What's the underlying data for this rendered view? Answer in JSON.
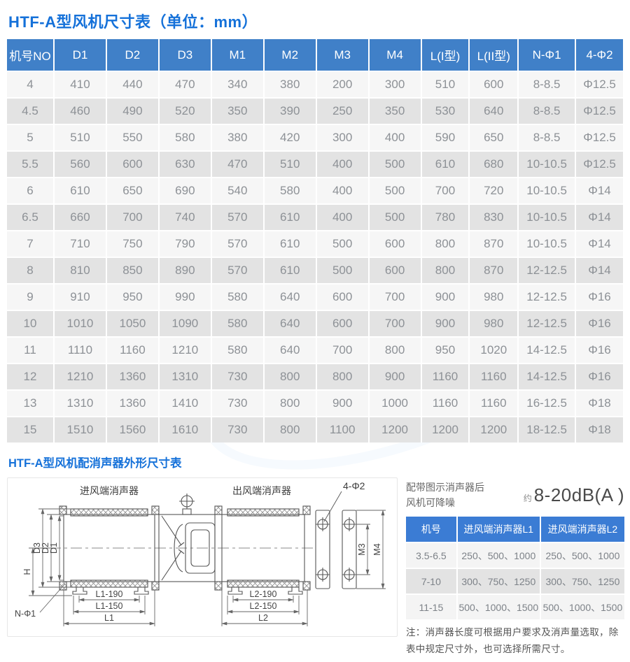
{
  "page": {
    "title1": "HTF-A型风机尺寸表（单位：mm）",
    "title2": "HTF-A型风机配消声器外形尺寸表"
  },
  "main_table": {
    "headers": [
      "机号NO",
      "D1",
      "D2",
      "D3",
      "M1",
      "M2",
      "M3",
      "M4",
      "L(I型)",
      "L(II型)",
      "N-Φ1",
      "4-Φ2"
    ],
    "rows": [
      [
        "4",
        "410",
        "440",
        "470",
        "340",
        "380",
        "200",
        "300",
        "510",
        "600",
        "8-8.5",
        "Φ12.5"
      ],
      [
        "4.5",
        "460",
        "490",
        "520",
        "350",
        "390",
        "250",
        "350",
        "530",
        "640",
        "8-8.5",
        "Φ12.5"
      ],
      [
        "5",
        "510",
        "550",
        "580",
        "380",
        "420",
        "300",
        "400",
        "590",
        "650",
        "8-8.5",
        "Φ12.5"
      ],
      [
        "5.5",
        "560",
        "600",
        "630",
        "470",
        "510",
        "400",
        "500",
        "610",
        "680",
        "10-10.5",
        "Φ12.5"
      ],
      [
        "6",
        "610",
        "650",
        "690",
        "540",
        "580",
        "400",
        "500",
        "700",
        "720",
        "10-10.5",
        "Φ14"
      ],
      [
        "6.5",
        "660",
        "700",
        "740",
        "570",
        "610",
        "400",
        "500",
        "780",
        "830",
        "10-10.5",
        "Φ14"
      ],
      [
        "7",
        "710",
        "750",
        "790",
        "570",
        "610",
        "500",
        "600",
        "800",
        "870",
        "10-10.5",
        "Φ14"
      ],
      [
        "8",
        "810",
        "850",
        "890",
        "570",
        "610",
        "500",
        "600",
        "800",
        "870",
        "12-12.5",
        "Φ14"
      ],
      [
        "9",
        "910",
        "950",
        "990",
        "580",
        "640",
        "600",
        "700",
        "900",
        "980",
        "12-12.5",
        "Φ16"
      ],
      [
        "10",
        "1010",
        "1050",
        "1090",
        "580",
        "640",
        "600",
        "700",
        "900",
        "980",
        "12-12.5",
        "Φ16"
      ],
      [
        "11",
        "1110",
        "1160",
        "1210",
        "580",
        "640",
        "700",
        "800",
        "950",
        "1020",
        "14-12.5",
        "Φ16"
      ],
      [
        "12",
        "1210",
        "1360",
        "1310",
        "730",
        "800",
        "800",
        "900",
        "1160",
        "1160",
        "14-12.5",
        "Φ16"
      ],
      [
        "13",
        "1310",
        "1360",
        "1410",
        "730",
        "800",
        "900",
        "1000",
        "1160",
        "1160",
        "16-12.5",
        "Φ18"
      ],
      [
        "15",
        "1510",
        "1560",
        "1610",
        "730",
        "800",
        "1100",
        "1200",
        "1200",
        "1200",
        "18-12.5",
        "Φ18"
      ]
    ]
  },
  "noise": {
    "line1": "配带图示消声器后",
    "line2": "风机可降噪",
    "approx": "约",
    "value": "8-20dB(A )"
  },
  "silencer_table": {
    "headers": [
      "机号",
      "进风端消声器L1",
      "进风端消声器L2"
    ],
    "rows": [
      [
        "3.5-6.5",
        "250、500、1000",
        "250、500、1000"
      ],
      [
        "7-10",
        "300、750、1250",
        "300、750、1250"
      ],
      [
        "11-15",
        "500、1000、1500",
        "500、1000、1500"
      ]
    ]
  },
  "note": {
    "text": "注：消声器长度可根据用户要求及消声量选取，除表中规定尺寸外，也可选择所需尺寸。"
  },
  "diagram": {
    "inlet_label": "进风端消声器",
    "outlet_label": "出风端消声器",
    "dims": {
      "d1": "D1",
      "d2": "D2",
      "d3": "D3",
      "h": "H",
      "n_phi1": "N-Φ1",
      "l1_190": "L1-190",
      "l1_150": "L1-150",
      "l1": "L1",
      "l2_190": "L2-190",
      "l2_150": "L2-150",
      "l2": "L2",
      "m3": "M3",
      "m4": "M4",
      "four_phi2": "4-Φ2"
    }
  },
  "colors": {
    "title_blue": "#1571d9",
    "main_header_blue": "#4080c8",
    "small_header_blue": "#3b7cd4",
    "row_light": "#f6f6f6",
    "row_dark": "#e3e3e3"
  }
}
